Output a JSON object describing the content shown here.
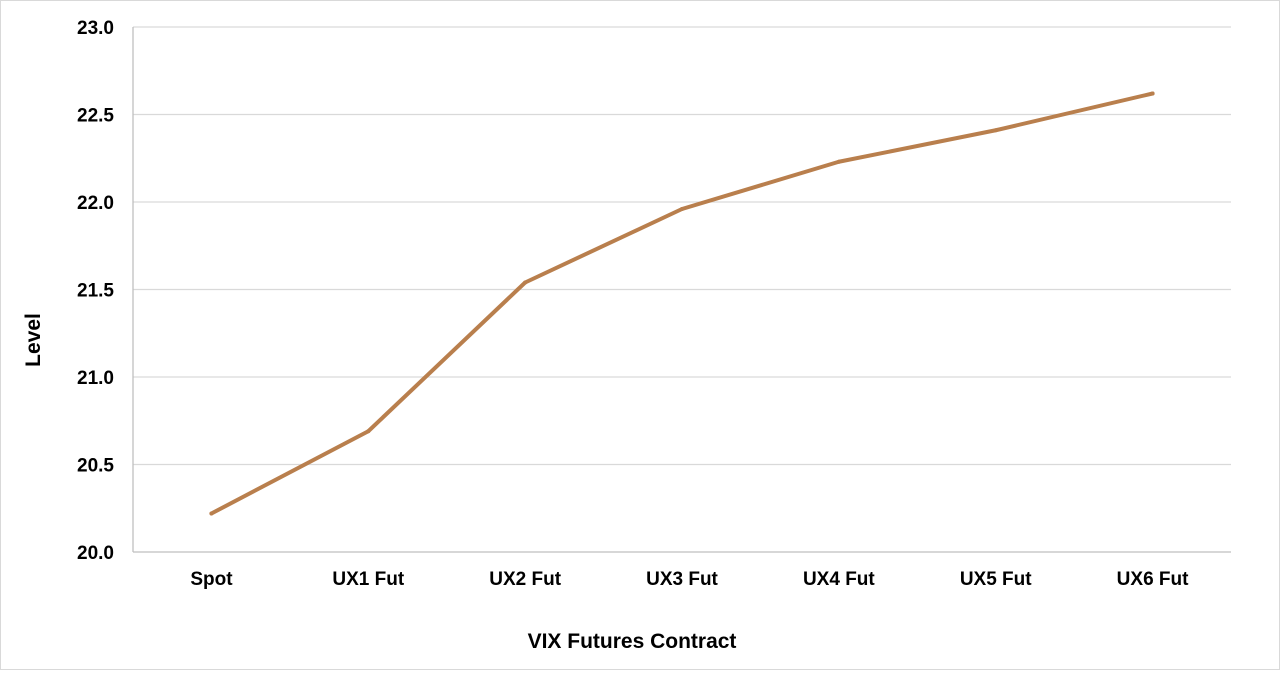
{
  "chart_data": {
    "type": "line",
    "title": "",
    "xlabel": "VIX Futures Contract",
    "ylabel": "Level",
    "categories": [
      "Spot",
      "UX1 Fut",
      "UX2 Fut",
      "UX3 Fut",
      "UX4 Fut",
      "UX5 Fut",
      "UX6 Fut"
    ],
    "series": [
      {
        "values": [
          20.22,
          20.69,
          21.54,
          21.96,
          22.23,
          22.41,
          22.62
        ],
        "color": "#B97F4D"
      }
    ],
    "ylim": [
      20.0,
      23.0
    ],
    "yticks": [
      "20.0",
      "20.5",
      "21.0",
      "21.5",
      "22.0",
      "22.5",
      "23.0"
    ],
    "grid": true,
    "legend": "none"
  }
}
